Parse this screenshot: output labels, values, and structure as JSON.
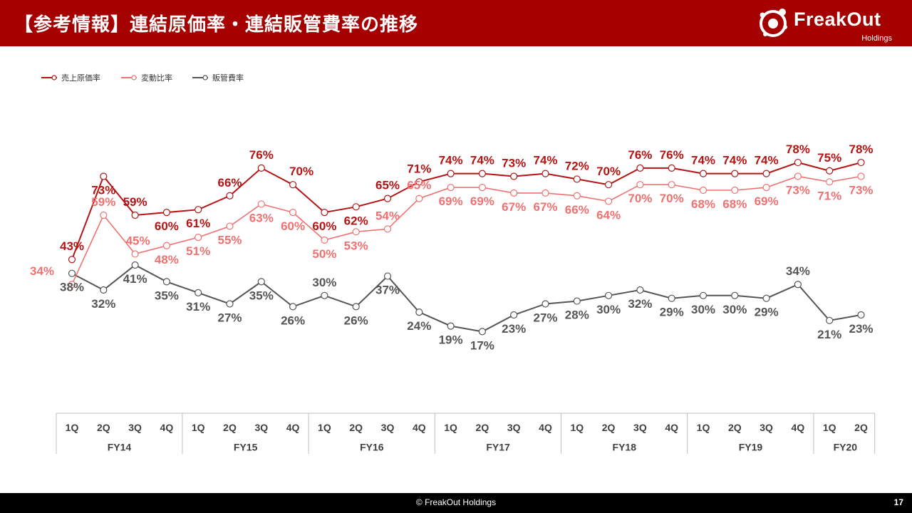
{
  "header": {
    "title": "【参考情報】連結原価率・連結販管費率の推移",
    "logo_text": "FreakOut",
    "logo_sub": "Holdings"
  },
  "footer": {
    "copyright": "© FreakOut Holdings",
    "page_number": "17"
  },
  "colors": {
    "brand": "#a50000",
    "series_cost": "#b31414",
    "series_variable": "#ee7272",
    "series_sga": "#555555"
  },
  "chart_data": {
    "type": "line",
    "quarters": [
      "1Q",
      "2Q",
      "3Q",
      "4Q",
      "1Q",
      "2Q",
      "3Q",
      "4Q",
      "1Q",
      "2Q",
      "3Q",
      "4Q",
      "1Q",
      "2Q",
      "3Q",
      "4Q",
      "1Q",
      "2Q",
      "3Q",
      "4Q",
      "1Q",
      "2Q",
      "3Q",
      "4Q",
      "1Q",
      "2Q"
    ],
    "fiscal_years": [
      {
        "label": "FY14",
        "quarters": 4
      },
      {
        "label": "FY15",
        "quarters": 4
      },
      {
        "label": "FY16",
        "quarters": 4
      },
      {
        "label": "FY17",
        "quarters": 4
      },
      {
        "label": "FY18",
        "quarters": 4
      },
      {
        "label": "FY19",
        "quarters": 4
      },
      {
        "label": "FY20",
        "quarters": 2
      }
    ],
    "legend_position": "top-left",
    "series": [
      {
        "name": "売上原価率",
        "color": "#b31414",
        "values": [
          43,
          73,
          59,
          60,
          61,
          66,
          76,
          70,
          60,
          62,
          65,
          71,
          74,
          74,
          73,
          74,
          72,
          70,
          76,
          76,
          74,
          74,
          74,
          78,
          75,
          78
        ]
      },
      {
        "name": "変動比率",
        "color": "#ee7272",
        "values": [
          34,
          59,
          45,
          48,
          51,
          55,
          63,
          60,
          50,
          53,
          54,
          65,
          69,
          69,
          67,
          67,
          66,
          64,
          70,
          70,
          68,
          68,
          69,
          73,
          71,
          73
        ]
      },
      {
        "name": "販管費率",
        "color": "#555555",
        "values": [
          38,
          32,
          41,
          35,
          31,
          27,
          35,
          26,
          30,
          26,
          37,
          24,
          19,
          17,
          23,
          27,
          28,
          30,
          32,
          29,
          30,
          30,
          29,
          34,
          21,
          23
        ]
      }
    ]
  }
}
